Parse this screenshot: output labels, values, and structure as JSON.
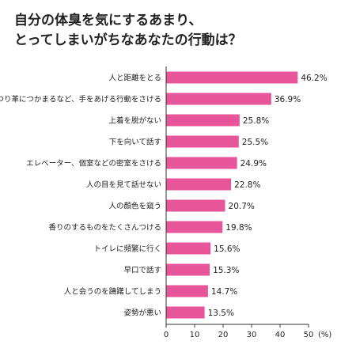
{
  "chart_data": {
    "type": "bar",
    "orientation": "horizontal",
    "title_lines": [
      "自分の体臭を気にするあまり、",
      "とってしまいがちなあなたの行動は？"
    ],
    "categories": [
      "人と距離をとる",
      "つり革につかまるなど、手をあげる行動をさける",
      "上着を脱がない",
      "下を向いて話す",
      "エレベーター、個室などの密室をさける",
      "人の目を見て話せない",
      "人の顔色を窺う",
      "香りのするものをたくさんつける",
      "トイレに頻繁に行く",
      "早口で話す",
      "人と会うのを躊躇してしまう",
      "姿勢が悪い"
    ],
    "values": [
      46.2,
      36.9,
      25.8,
      25.5,
      24.9,
      22.8,
      20.7,
      19.8,
      15.6,
      15.3,
      14.7,
      13.5
    ],
    "value_labels": [
      "46.2%",
      "36.9%",
      "25.8%",
      "25.5%",
      "24.9%",
      "22.8%",
      "20.7%",
      "19.8%",
      "15.6%",
      "15.3%",
      "14.7%",
      "13.5%"
    ],
    "xlim": [
      0,
      50
    ],
    "x_ticks": [
      0,
      10,
      20,
      30,
      40,
      50
    ],
    "x_tick_labels": [
      "0",
      "10",
      "20",
      "30",
      "40",
      "50"
    ],
    "unit_label": "(%)",
    "bar_color": "#e8569a",
    "axis_color": "#333333",
    "grid": false
  }
}
